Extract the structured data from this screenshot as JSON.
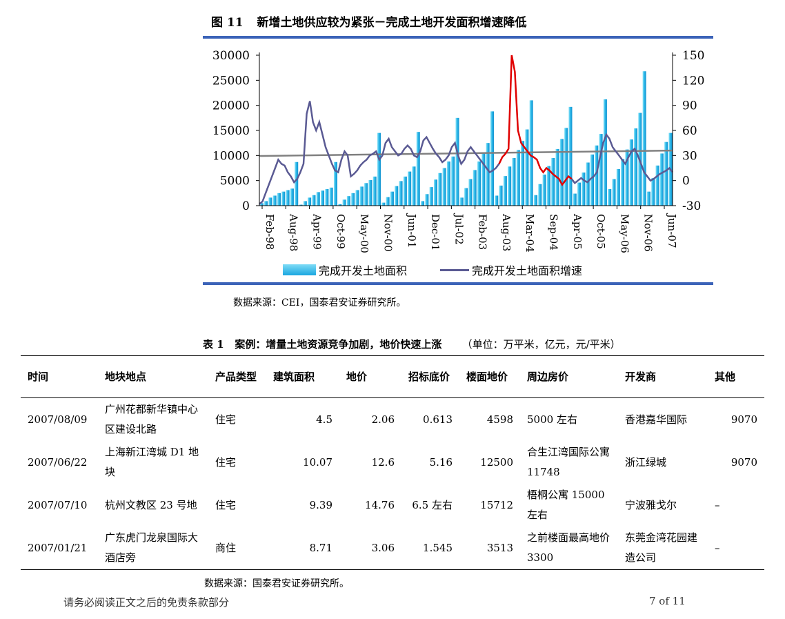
{
  "figure": {
    "number": "图 11",
    "title": "新增土地供应较为紧张－完成土地开发面积增速降低"
  },
  "chart_data": {
    "type": "bar+line",
    "x_tick_labels": [
      "Feb-98",
      "Aug-98",
      "Apr-99",
      "Oct-99",
      "May-00",
      "Nov-00",
      "Jun-01",
      "Dec-01",
      "Jul-02",
      "Feb-03",
      "Aug-03",
      "Mar-04",
      "Sep-04",
      "Apr-05",
      "Oct-05",
      "May-06",
      "Nov-06",
      "Jun-07"
    ],
    "y_left": {
      "ticks": [
        0,
        5000,
        10000,
        15000,
        20000,
        25000,
        30000
      ],
      "ylim": [
        0,
        30000
      ]
    },
    "y_right": {
      "ticks": [
        -30,
        0,
        30,
        60,
        90,
        120,
        150
      ],
      "ylim": [
        -30,
        150
      ]
    },
    "series": [
      {
        "name": "完成开发土地面积",
        "axis": "left",
        "type": "bar",
        "color": "#1aa6e0",
        "values": [
          500,
          900,
          1600,
          2000,
          2500,
          2800,
          3100,
          3400,
          8700,
          200,
          900,
          1600,
          2100,
          2700,
          3000,
          3300,
          3600,
          8700,
          300,
          1200,
          1900,
          2500,
          3100,
          3800,
          4500,
          5100,
          5800,
          14500,
          600,
          1700,
          2800,
          3900,
          4900,
          5800,
          6800,
          7800,
          14700,
          900,
          2300,
          3700,
          5200,
          6500,
          7500,
          8800,
          9800,
          17500,
          1600,
          3500,
          5300,
          7100,
          8800,
          10600,
          12500,
          18800,
          2000,
          4000,
          5900,
          7800,
          9500,
          11100,
          12900,
          15200,
          21000,
          2100,
          4300,
          6200,
          7900,
          9500,
          11300,
          13300,
          15500,
          19700,
          2400,
          4600,
          6600,
          8600,
          10200,
          12000,
          14300,
          21200,
          3300,
          5300,
          7300,
          9300,
          11200,
          13200,
          15400,
          18500,
          26800,
          2800,
          5500,
          8000,
          10400,
          12700,
          14500
        ]
      },
      {
        "name": "完成开发土地面积增速",
        "axis": "right",
        "type": "line",
        "color": "#5a5a93",
        "highlight_color": "#e00000",
        "values": [
          -28,
          -25,
          -15,
          -5,
          5,
          15,
          25,
          20,
          18,
          10,
          5,
          -2,
          2,
          10,
          20,
          80,
          95,
          70,
          60,
          70,
          55,
          40,
          30,
          20,
          12,
          10,
          25,
          35,
          30,
          5,
          8,
          12,
          18,
          22,
          25,
          30,
          32,
          35,
          25,
          30,
          45,
          50,
          40,
          35,
          30,
          32,
          38,
          42,
          38,
          30,
          28,
          35,
          48,
          52,
          45,
          38,
          32,
          28,
          22,
          25,
          30,
          40,
          45,
          30,
          20,
          25,
          35,
          40,
          35,
          30,
          25,
          20,
          15,
          10,
          12,
          15,
          20,
          28,
          32,
          38,
          150,
          130,
          60,
          45,
          40,
          35,
          30,
          28,
          25,
          15,
          10,
          15,
          12,
          8,
          5,
          2,
          -5,
          0,
          5,
          2,
          -3,
          0,
          3,
          0,
          -2,
          2,
          5,
          10,
          28,
          45,
          55,
          50,
          40,
          35,
          30,
          25,
          20,
          28,
          35,
          38,
          30,
          20,
          10,
          5,
          0,
          2,
          5,
          8,
          10,
          12,
          15,
          10
        ]
      },
      {
        "name": "trend",
        "axis": "left",
        "type": "line",
        "color": "#808080",
        "values": [
          9900,
          11000
        ]
      }
    ]
  },
  "legend": {
    "bar_label": "完成开发土地面积",
    "line_label": "完成开发土地面积增速"
  },
  "source1": "数据来源：CEI，国泰君安证券研究所。",
  "table": {
    "number": "表 1",
    "title": "案例：增量土地资源竞争加剧，地价快速上涨",
    "unit": "（单位：万平米，亿元，元/平米）",
    "headers": [
      "时间",
      "地块地点",
      "产品类型",
      "建筑面积",
      "地价",
      "招标底价",
      "楼面地价",
      "周边房价",
      "开发商",
      "其他"
    ],
    "rows": [
      [
        "2007/08/09",
        "广州花都新华镇中心区建设北路",
        "住宅",
        "4.5",
        "2.06",
        "0.613",
        "4598",
        "5000 左右",
        "香港嘉华国际",
        "9070"
      ],
      [
        "2007/06/22",
        "上海新江湾城 D1 地块",
        "住宅",
        "10.07",
        "12.6",
        "5.16",
        "12500",
        "合生江湾国际公寓 11748",
        "浙江绿城",
        "9070"
      ],
      [
        "2007/07/10",
        "杭州文教区 23 号地",
        "住宅",
        "9.39",
        "14.76",
        "6.5 左右",
        "15712",
        "梧桐公寓 15000 左右",
        "宁波雅戈尔",
        "–"
      ],
      [
        "2007/01/21",
        "广东虎门龙泉国际大酒店旁",
        "商住",
        "8.71",
        "3.06",
        "1.545",
        "3513",
        "之前楼面最高地价 3300",
        "东莞金湾花园建造公司",
        "–"
      ]
    ]
  },
  "source2": "数据来源：国泰君安证券研究所。",
  "footer": {
    "disclaimer": "请务必阅读正文之后的免责条款部分",
    "page": "7 of 11"
  }
}
